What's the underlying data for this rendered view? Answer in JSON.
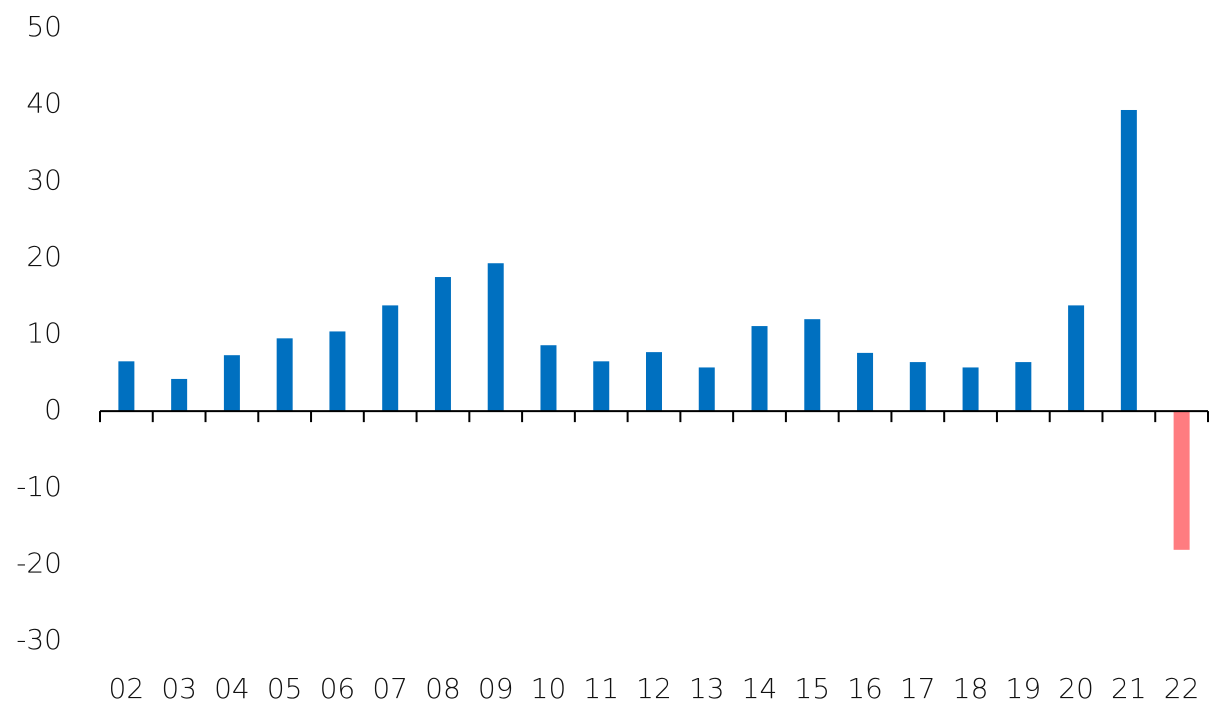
{
  "chart_data": {
    "type": "bar",
    "categories": [
      "02",
      "03",
      "04",
      "05",
      "06",
      "07",
      "08",
      "09",
      "10",
      "11",
      "12",
      "13",
      "14",
      "15",
      "16",
      "17",
      "18",
      "19",
      "20",
      "21",
      "22"
    ],
    "values": [
      6.5,
      4.2,
      7.3,
      9.5,
      10.4,
      13.8,
      17.5,
      19.3,
      8.6,
      6.5,
      7.7,
      5.7,
      11.1,
      12.0,
      7.6,
      6.4,
      5.7,
      6.4,
      13.8,
      39.3,
      -18.1
    ],
    "color": "#0070c0",
    "negative_color": "#ff7c80",
    "ylim": [
      -30,
      50
    ],
    "yticks": [
      -30,
      -20,
      -10,
      0,
      10,
      20,
      30,
      40,
      50
    ],
    "grid": false
  }
}
